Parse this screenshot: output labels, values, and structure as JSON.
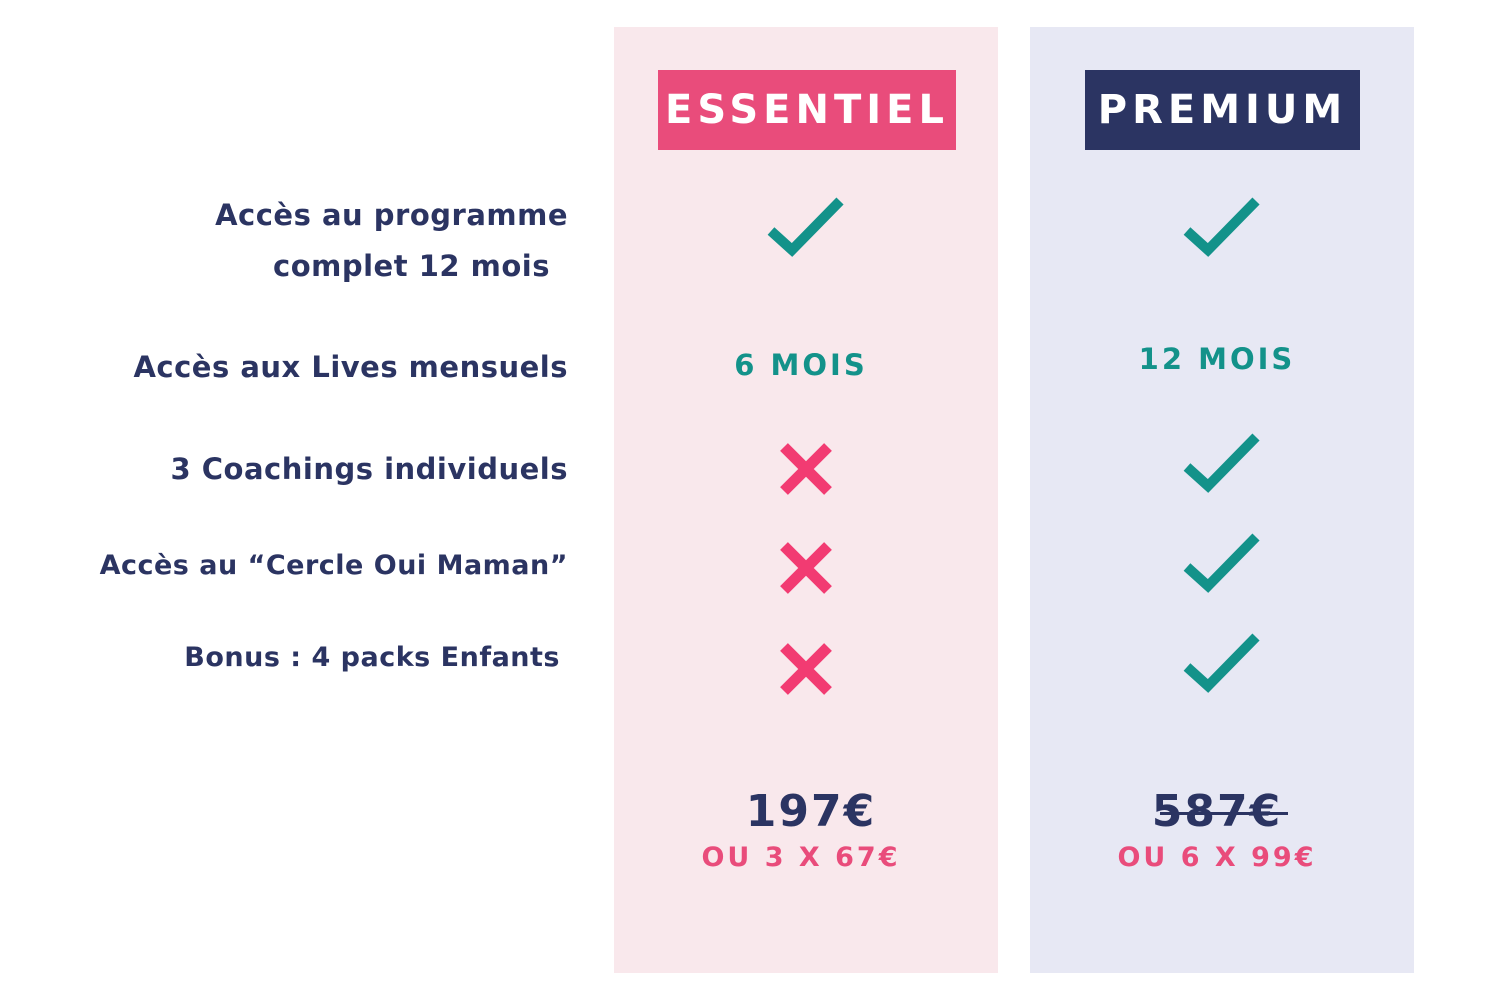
{
  "plans": {
    "essentiel": {
      "name": "ESSENTIEL",
      "live_duration": "6 MOIS",
      "price": "197€",
      "installment": "OU 3 X 67€",
      "features_included": [
        true,
        true,
        false,
        false,
        false
      ],
      "color": "#e94c7b",
      "background": "#f9e8ec"
    },
    "premium": {
      "name": "PREMIUM",
      "live_duration": "12 MOIS",
      "price": "587€",
      "installment": "OU 6 X 99€",
      "features_included": [
        true,
        true,
        true,
        true,
        true
      ],
      "color": "#2b3462",
      "background": "#e7e8f4"
    }
  },
  "features": {
    "programme_line1": "Accès au programme",
    "programme_line2": "complet 12 mois",
    "lives": "Accès aux Lives mensuels",
    "coachings": "3 Coachings individuels",
    "cercle": "Accès au “Cercle Oui Maman”",
    "bonus": "Bonus : 4 packs Enfants"
  },
  "icons": {
    "included": "check-icon",
    "excluded": "cross-icon",
    "check_color": "#13928a",
    "cross_color": "#f23b72"
  }
}
